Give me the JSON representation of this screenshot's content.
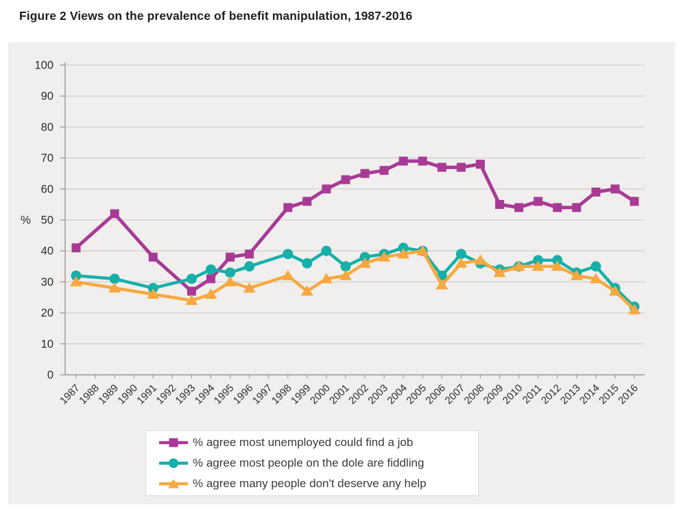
{
  "page": {
    "title": "Figure 2 Views on the prevalence of benefit manipulation, 1987-2016"
  },
  "colors": {
    "series_job": "#a83a96",
    "series_dole": "#16afa9",
    "series_help": "#f8a83e",
    "panel_bg": "#f0efed",
    "gridline": "#d2d0cd",
    "axis": "#98968f",
    "tick_text": "#2b2b2b",
    "title_text": "#231f20",
    "legend_bg": "#ffffff",
    "legend_border": "#dddbd8"
  },
  "chart_data": {
    "type": "line",
    "title": "Figure 2 Views on the prevalence of benefit manipulation, 1987-2016",
    "xlabel": "",
    "ylabel": "%",
    "ylim": [
      0,
      100
    ],
    "ytick_step": 10,
    "grid": true,
    "legend_position": "bottom-center",
    "x": [
      1987,
      1988,
      1989,
      1990,
      1991,
      1992,
      1993,
      1994,
      1995,
      1996,
      1997,
      1998,
      1999,
      2000,
      2001,
      2002,
      2003,
      2004,
      2005,
      2006,
      2007,
      2008,
      2009,
      2010,
      2011,
      2012,
      2013,
      2014,
      2015,
      2016
    ],
    "note_missing_years": [
      1988,
      1990,
      1992,
      1997
    ],
    "series": [
      {
        "name": "% agree most unemployed could find a job",
        "marker": "square",
        "color": "#a83a96",
        "values": [
          41,
          null,
          52,
          null,
          38,
          null,
          27,
          31,
          38,
          39,
          null,
          54,
          56,
          60,
          63,
          65,
          66,
          69,
          69,
          67,
          67,
          68,
          55,
          54,
          56,
          54,
          54,
          59,
          60,
          56
        ]
      },
      {
        "name": "% agree most people on the dole are fiddling",
        "marker": "circle",
        "color": "#16afa9",
        "values": [
          32,
          null,
          31,
          null,
          28,
          null,
          31,
          34,
          33,
          35,
          null,
          39,
          36,
          40,
          35,
          38,
          39,
          41,
          40,
          32,
          39,
          36,
          34,
          35,
          37,
          37,
          33,
          35,
          28,
          22
        ]
      },
      {
        "name": "% agree many people don't deserve any help",
        "marker": "triangle",
        "color": "#f8a83e",
        "values": [
          30,
          null,
          28,
          null,
          26,
          null,
          24,
          26,
          30,
          28,
          null,
          32,
          27,
          31,
          32,
          36,
          38,
          39,
          40,
          29,
          36,
          37,
          33,
          35,
          35,
          35,
          32,
          31,
          27,
          21
        ]
      }
    ]
  },
  "legend": {
    "items": [
      {
        "label": "% agree most unemployed could find a job"
      },
      {
        "label": "% agree most people on the dole are fiddling"
      },
      {
        "label": "% agree many people don't deserve any help"
      }
    ]
  }
}
